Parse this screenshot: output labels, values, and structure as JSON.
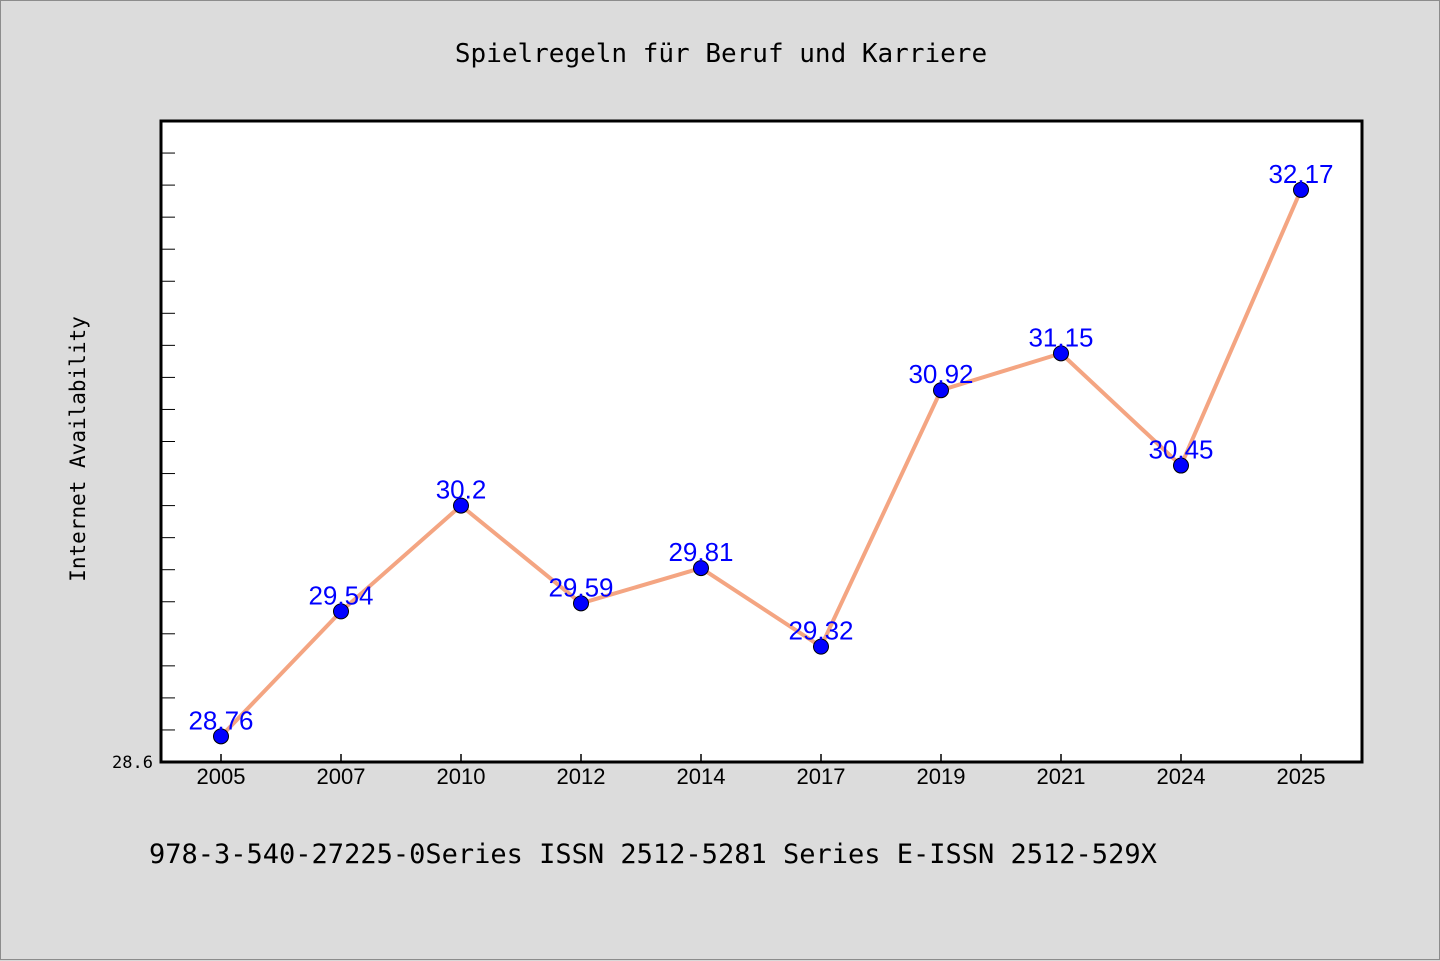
{
  "footer": "978-3-540-27225-0Series ISSN 2512-5281 Series E-ISSN 2512-529X",
  "chart_data": {
    "type": "line",
    "title": "Spielregeln für Beruf und Karriere",
    "xlabel": "",
    "ylabel": "Internet Availability",
    "categories": [
      "2005",
      "2007",
      "2010",
      "2012",
      "2014",
      "2017",
      "2019",
      "2021",
      "2024",
      "2025"
    ],
    "series": [
      {
        "values": [
          28.76,
          29.54,
          30.2,
          29.59,
          29.81,
          29.32,
          30.92,
          31.15,
          30.45,
          32.17
        ],
        "labels": [
          "28.76",
          "29.54",
          "30.2",
          "29.59",
          "29.81",
          "29.32",
          "30.92",
          "31.15",
          "30.45",
          "32.17"
        ]
      }
    ],
    "ylim": [
      28.6,
      32.6
    ],
    "ymin_label": "28.6",
    "line_color": "#f4a582",
    "marker_color": "#0000ff",
    "label_color": "#0000ff",
    "grid": false
  }
}
